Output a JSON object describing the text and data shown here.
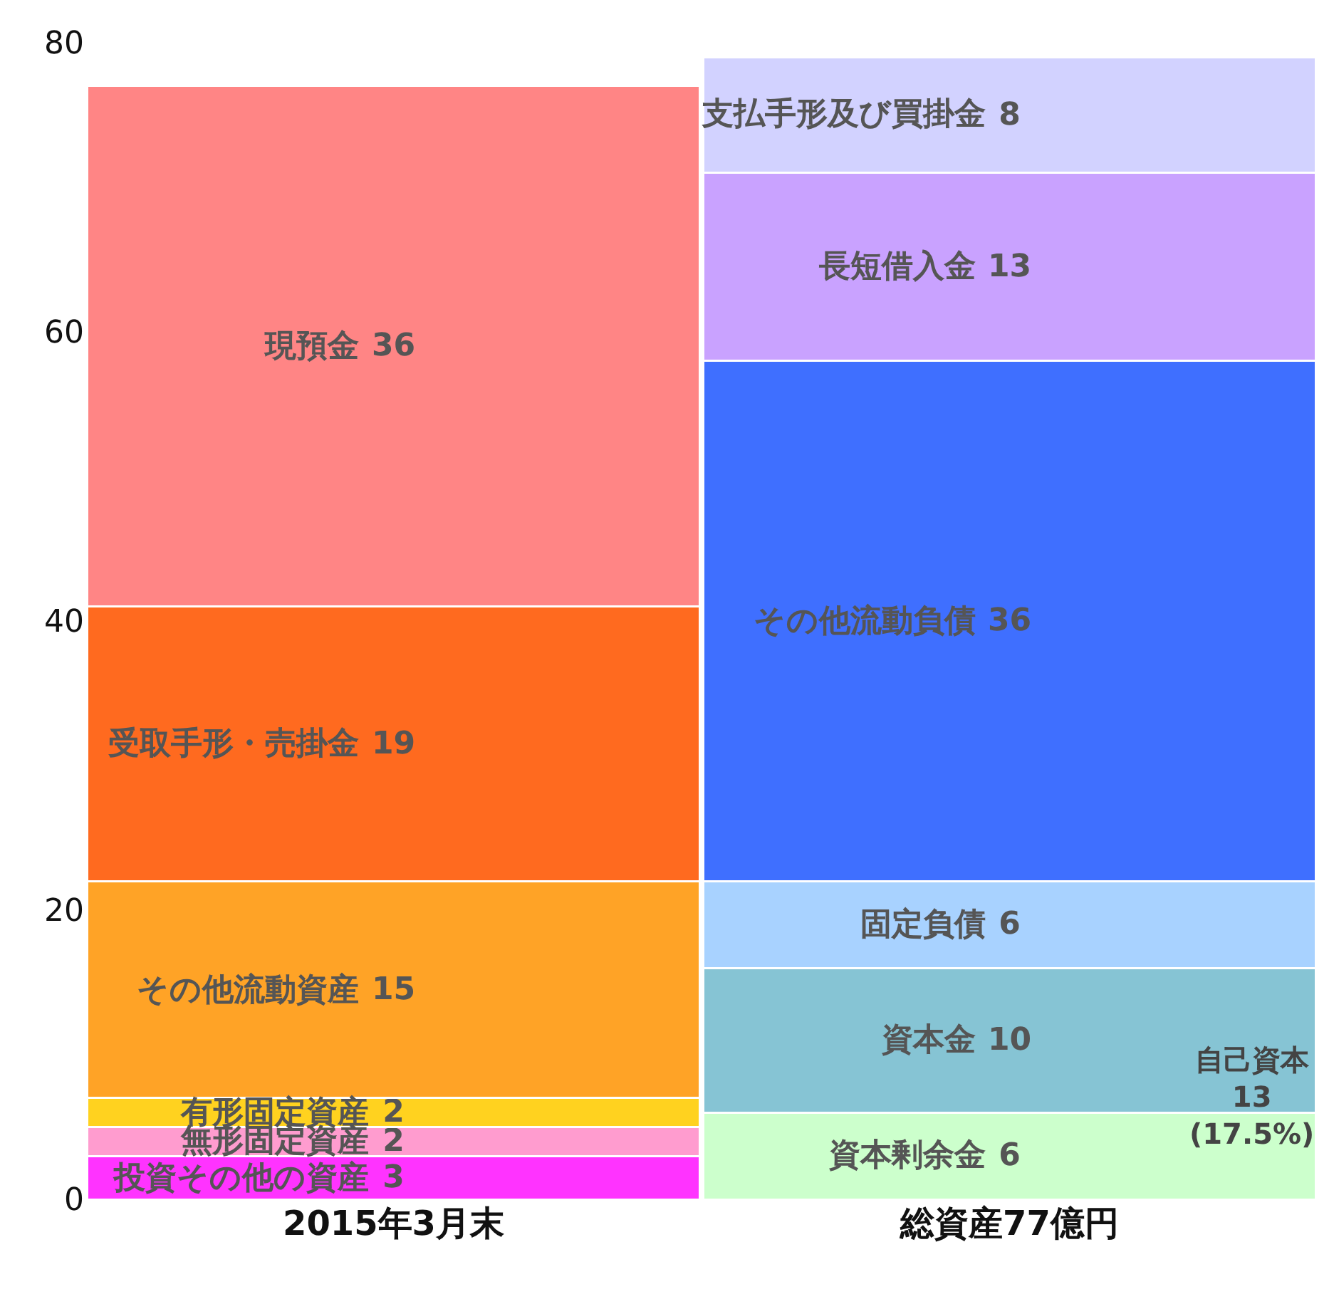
{
  "chart_data": {
    "type": "bar",
    "stacked": true,
    "categories": [
      "2015年3月末",
      "総資産77億円"
    ],
    "series": [
      {
        "name": "投資その他の資産",
        "color": "#ff33ff",
        "values": [
          3,
          null
        ]
      },
      {
        "name": "無形固定資産",
        "color": "#ff9ccf",
        "values": [
          2,
          null
        ]
      },
      {
        "name": "有形固定資産",
        "color": "#ffd21f",
        "values": [
          2,
          null
        ]
      },
      {
        "name": "その他流動資産",
        "color": "#ffa326",
        "values": [
          15,
          null
        ]
      },
      {
        "name": "受取手形・売掛金",
        "color": "#ff6a1f",
        "values": [
          19,
          null
        ]
      },
      {
        "name": "現預金",
        "color": "#ff8585",
        "values": [
          36,
          null
        ]
      },
      {
        "name": "資本剰余金",
        "color": "#ccffcc",
        "values": [
          null,
          6
        ]
      },
      {
        "name": "資本金",
        "color": "#86c4d4",
        "values": [
          null,
          10
        ]
      },
      {
        "name": "固定負債",
        "color": "#a8d2ff",
        "values": [
          null,
          6
        ]
      },
      {
        "name": "その他流動負債",
        "color": "#3f6fff",
        "values": [
          null,
          36
        ]
      },
      {
        "name": "長短借入金",
        "color": "#c9a2ff",
        "values": [
          null,
          13
        ]
      },
      {
        "name": "支払手形及び買掛金",
        "color": "#d2d2ff",
        "values": [
          null,
          8
        ]
      }
    ],
    "ylim": [
      0,
      80
    ],
    "yticks": [
      0,
      20,
      40,
      60,
      80
    ],
    "legend": false,
    "data_labels": true,
    "annotations": [
      "自己資本\n13\n(17.5%)"
    ]
  }
}
